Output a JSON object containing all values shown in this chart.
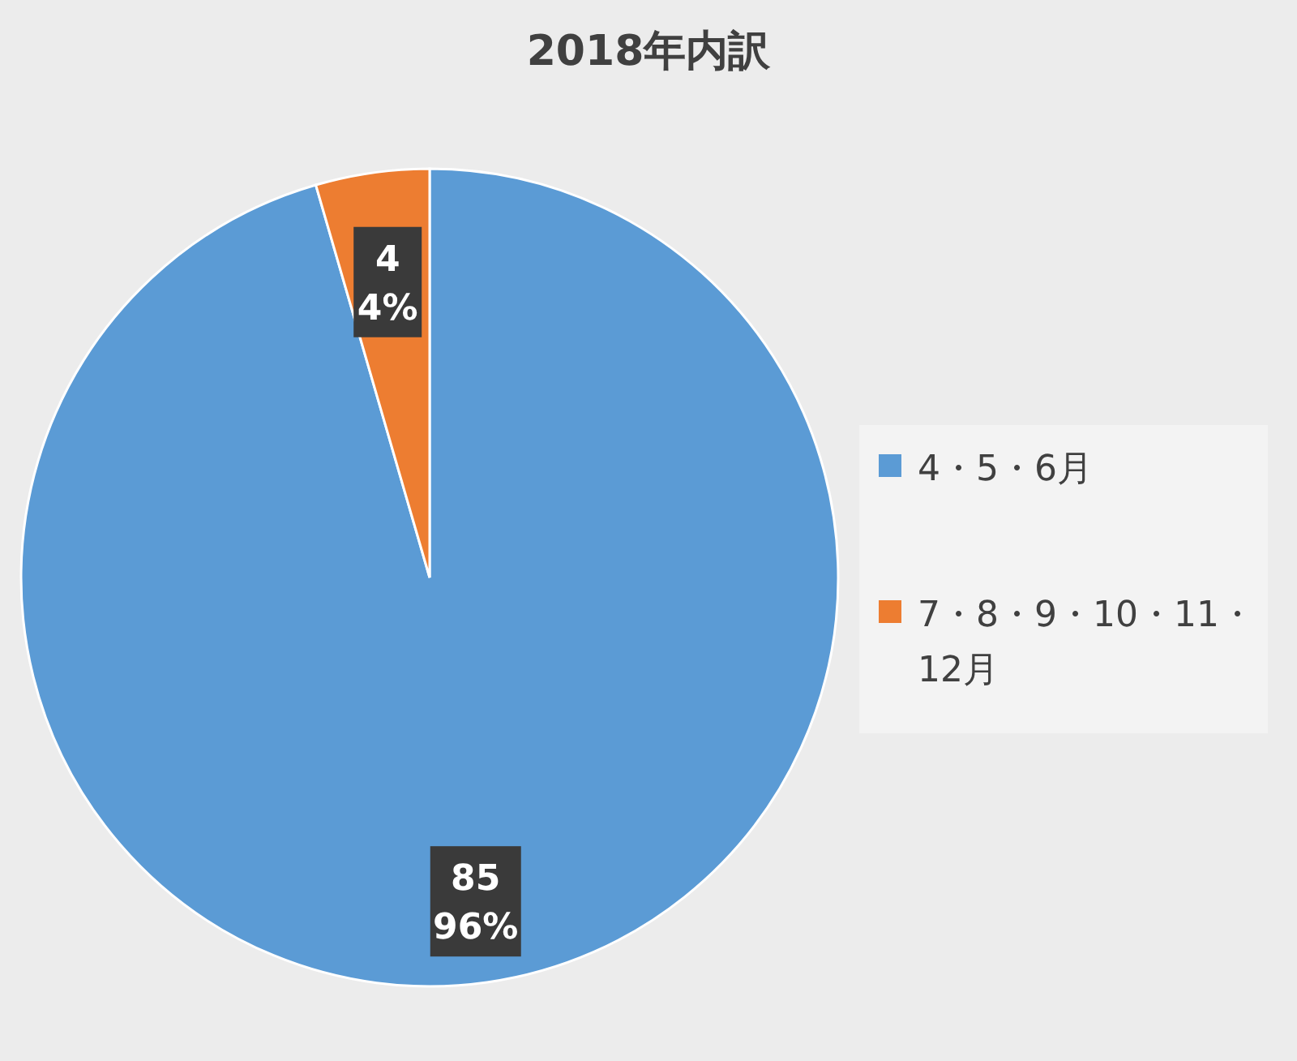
{
  "chart_data": {
    "type": "pie",
    "title": "2018年内訳",
    "categories": [
      "4・5・6月",
      "7・8・9・10・11・12月"
    ],
    "values": [
      85,
      4
    ],
    "colors": [
      "#5b9bd5",
      "#ed7d31"
    ],
    "value_labels": [
      "85\n96%",
      "4\n4%"
    ],
    "legend": "right"
  }
}
